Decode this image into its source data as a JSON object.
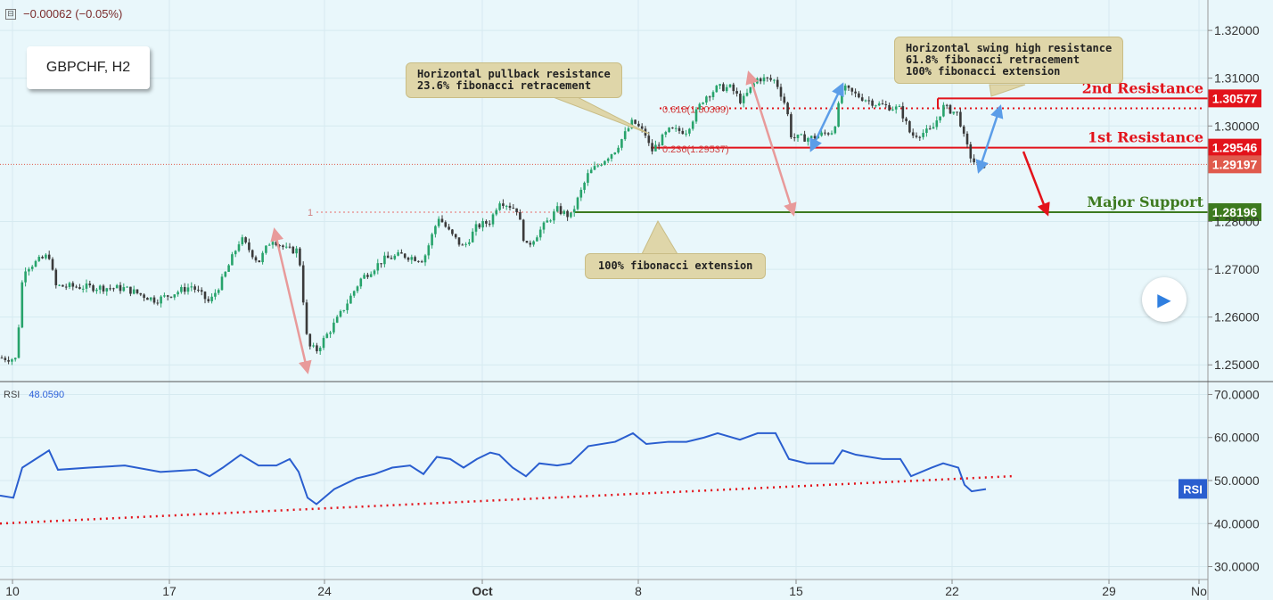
{
  "header": {
    "collapse_symbol": "⊟",
    "change_text": "−0.00062 (−0.05%)"
  },
  "symbol_label": "GBPCHF, H2",
  "colors": {
    "bg": "#e9f7fb",
    "up": "#27a36b",
    "down": "#3a3a3a",
    "resistance": "#e3131b",
    "support": "#3d7a1f",
    "current": "#e05a4d",
    "rsi": "#2a5ecf",
    "blue_arrow": "#5b9de8",
    "pink_arrow": "#e89a9a",
    "callout": "#dfd6a9"
  },
  "chart_data": {
    "type": "candlestick",
    "title": "GBPCHF, H2",
    "price_axis": {
      "ylim": [
        1.2465,
        1.3245
      ],
      "ticks": [
        "1.32000",
        "1.31000",
        "1.30000",
        "1.28000",
        "1.27000",
        "1.26000",
        "1.25000"
      ],
      "tick_values": [
        1.32,
        1.31,
        1.3,
        1.28,
        1.27,
        1.26,
        1.25
      ]
    },
    "time_axis": {
      "labels": [
        "10",
        "17",
        "24",
        "Oct",
        "8",
        "15",
        "22",
        "29",
        "No"
      ]
    },
    "price_path": [
      [
        0,
        1.2515
      ],
      [
        18,
        1.2512
      ],
      [
        26,
        1.27
      ],
      [
        55,
        1.273
      ],
      [
        62,
        1.2665
      ],
      [
        140,
        1.266
      ],
      [
        175,
        1.2635
      ],
      [
        215,
        1.2665
      ],
      [
        235,
        1.263
      ],
      [
        250,
        1.268
      ],
      [
        270,
        1.2765
      ],
      [
        290,
        1.2715
      ],
      [
        305,
        1.2765
      ],
      [
        322,
        1.274
      ],
      [
        335,
        1.274
      ],
      [
        345,
        1.254
      ],
      [
        355,
        1.253
      ],
      [
        380,
        1.26
      ],
      [
        405,
        1.268
      ],
      [
        430,
        1.272
      ],
      [
        450,
        1.273
      ],
      [
        475,
        1.272
      ],
      [
        492,
        1.281
      ],
      [
        505,
        1.2775
      ],
      [
        520,
        1.2745
      ],
      [
        535,
        1.279
      ],
      [
        550,
        1.28
      ],
      [
        560,
        1.2845
      ],
      [
        580,
        1.2825
      ],
      [
        590,
        1.2745
      ],
      [
        625,
        1.2825
      ],
      [
        640,
        1.281
      ],
      [
        660,
        1.29
      ],
      [
        690,
        1.295
      ],
      [
        710,
        1.301
      ],
      [
        725,
        1.298
      ],
      [
        730,
        1.2945
      ],
      [
        750,
        1.299
      ],
      [
        770,
        1.299
      ],
      [
        790,
        1.306
      ],
      [
        805,
        1.308
      ],
      [
        820,
        1.308
      ],
      [
        832,
        1.305
      ],
      [
        850,
        1.31
      ],
      [
        870,
        1.3095
      ],
      [
        882,
        1.304
      ],
      [
        888,
        1.2975
      ],
      [
        910,
        1.2975
      ],
      [
        935,
        1.299
      ],
      [
        945,
        1.308
      ],
      [
        960,
        1.3065
      ],
      [
        985,
        1.3045
      ],
      [
        1010,
        1.3035
      ],
      [
        1022,
        1.298
      ],
      [
        1045,
        1.299
      ],
      [
        1058,
        1.304
      ],
      [
        1075,
        1.3025
      ],
      [
        1082,
        1.297
      ],
      [
        1090,
        1.293
      ],
      [
        1098,
        1.2915
      ],
      [
        1106,
        1.292
      ]
    ],
    "levels": [
      {
        "label": "2nd Resistance",
        "value": "1.30577"
      },
      {
        "label": "1st Resistance",
        "value": "1.29546"
      },
      {
        "label": "Major Support",
        "value": "1.28196"
      }
    ],
    "current_price": "1.29197",
    "fib_labels": [
      "0.618(1.30369)",
      "0.236(1.29537)",
      "1"
    ],
    "rsi": {
      "label": "RSI",
      "current": "48.0590",
      "tag": "RSI",
      "ylim": [
        27,
        73
      ],
      "ticks": [
        "70.0000",
        "60.0000",
        "50.0000",
        "40.0000",
        "30.0000"
      ],
      "tick_values": [
        70,
        60,
        50,
        40,
        30
      ],
      "path": [
        [
          0,
          46.5
        ],
        [
          15,
          46
        ],
        [
          25,
          53
        ],
        [
          40,
          55
        ],
        [
          55,
          57
        ],
        [
          65,
          52.5
        ],
        [
          100,
          53
        ],
        [
          140,
          53.5
        ],
        [
          180,
          52
        ],
        [
          220,
          52.5
        ],
        [
          235,
          51
        ],
        [
          250,
          53
        ],
        [
          270,
          56
        ],
        [
          290,
          53.5
        ],
        [
          310,
          53.5
        ],
        [
          325,
          55
        ],
        [
          335,
          52
        ],
        [
          345,
          46
        ],
        [
          355,
          44.5
        ],
        [
          375,
          48
        ],
        [
          400,
          50.5
        ],
        [
          420,
          51.5
        ],
        [
          440,
          53
        ],
        [
          460,
          53.5
        ],
        [
          475,
          51.5
        ],
        [
          490,
          55.5
        ],
        [
          505,
          55
        ],
        [
          520,
          53
        ],
        [
          535,
          55
        ],
        [
          550,
          56.5
        ],
        [
          560,
          56
        ],
        [
          575,
          53
        ],
        [
          590,
          51
        ],
        [
          605,
          54
        ],
        [
          625,
          53.5
        ],
        [
          640,
          54
        ],
        [
          660,
          58
        ],
        [
          690,
          59
        ],
        [
          710,
          61
        ],
        [
          725,
          58.5
        ],
        [
          750,
          59
        ],
        [
          770,
          59
        ],
        [
          790,
          60
        ],
        [
          805,
          61
        ],
        [
          830,
          59.5
        ],
        [
          850,
          61
        ],
        [
          870,
          61
        ],
        [
          885,
          55
        ],
        [
          905,
          54
        ],
        [
          935,
          54
        ],
        [
          945,
          57
        ],
        [
          960,
          56
        ],
        [
          990,
          55
        ],
        [
          1010,
          55
        ],
        [
          1022,
          51
        ],
        [
          1045,
          53
        ],
        [
          1058,
          54
        ],
        [
          1075,
          53
        ],
        [
          1082,
          49
        ],
        [
          1090,
          47.5
        ],
        [
          1106,
          48
        ]
      ],
      "trendline": {
        "x": [
          0,
          1135
        ],
        "y": [
          40,
          51
        ]
      }
    }
  },
  "callouts": {
    "pullback": "Horizontal pullback resistance\n23.6% fibonacci retracement",
    "swing": "Horizontal swing high resistance\n61.8% fibonacci retracement\n100% fibonacci extension",
    "extension": "100% fibonacci extension"
  }
}
